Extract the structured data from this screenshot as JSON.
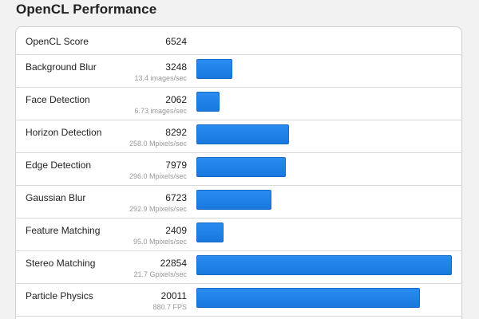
{
  "header": {
    "title": "OpenCL Performance"
  },
  "overall": {
    "label": "OpenCL Score",
    "score": "6524"
  },
  "max_score": 22854,
  "benchmarks": [
    {
      "name": "Background Blur",
      "score": 3248,
      "detail": "13.4 images/sec"
    },
    {
      "name": "Face Detection",
      "score": 2062,
      "detail": "6.73 images/sec"
    },
    {
      "name": "Horizon Detection",
      "score": 8292,
      "detail": "258.0 Mpixels/sec"
    },
    {
      "name": "Edge Detection",
      "score": 7979,
      "detail": "296.0 Mpixels/sec"
    },
    {
      "name": "Gaussian Blur",
      "score": 6723,
      "detail": "292.9 Mpixels/sec"
    },
    {
      "name": "Feature Matching",
      "score": 2409,
      "detail": "95.0 Mpixels/sec"
    },
    {
      "name": "Stereo Matching",
      "score": 22854,
      "detail": "21.7 Gpixels/sec"
    },
    {
      "name": "Particle Physics",
      "score": 20011,
      "detail": "880.7 FPS"
    }
  ],
  "colors": {
    "bar": "#1e80e6",
    "bar_border": "#1569c7",
    "background": "#f2f2f2"
  }
}
